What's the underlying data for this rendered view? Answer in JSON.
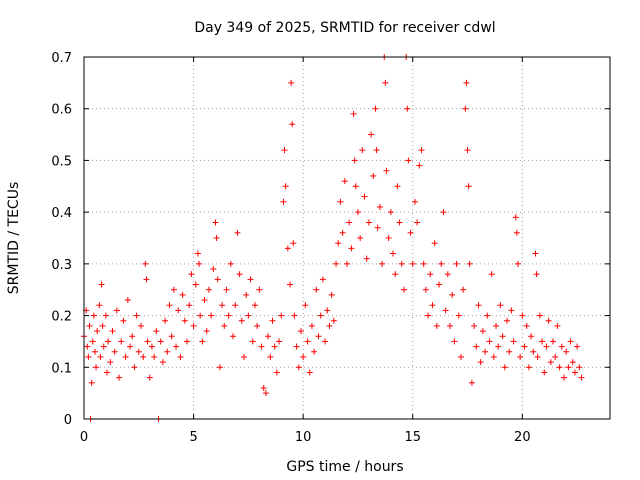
{
  "chart_data": {
    "type": "scatter",
    "title": "Day 349 of 2025, SRMTID for receiver cdwl",
    "xlabel": "GPS time / hours",
    "ylabel": "SRMTID / TECUs",
    "xlim": [
      0,
      24
    ],
    "ylim": [
      0,
      0.7
    ],
    "xticks": [
      0,
      5,
      10,
      15,
      20
    ],
    "yticks": [
      0,
      0.1,
      0.2,
      0.3,
      0.4,
      0.5,
      0.6,
      0.7
    ],
    "grid": true,
    "marker": "+",
    "color": "#ff0000",
    "series": [
      {
        "name": "SRMTID",
        "points": [
          [
            0.0,
            0.16
          ],
          [
            0.1,
            0.21
          ],
          [
            0.15,
            0.14
          ],
          [
            0.2,
            0.12
          ],
          [
            0.25,
            0.18
          ],
          [
            0.3,
            0.0
          ],
          [
            0.35,
            0.07
          ],
          [
            0.4,
            0.15
          ],
          [
            0.45,
            0.2
          ],
          [
            0.5,
            0.13
          ],
          [
            0.55,
            0.1
          ],
          [
            0.6,
            0.17
          ],
          [
            0.7,
            0.22
          ],
          [
            0.75,
            0.12
          ],
          [
            0.8,
            0.26
          ],
          [
            0.85,
            0.18
          ],
          [
            0.9,
            0.14
          ],
          [
            1.0,
            0.2
          ],
          [
            1.05,
            0.09
          ],
          [
            1.1,
            0.15
          ],
          [
            1.2,
            0.11
          ],
          [
            1.3,
            0.17
          ],
          [
            1.4,
            0.13
          ],
          [
            1.5,
            0.21
          ],
          [
            1.6,
            0.08
          ],
          [
            1.7,
            0.15
          ],
          [
            1.8,
            0.19
          ],
          [
            1.9,
            0.12
          ],
          [
            2.0,
            0.23
          ],
          [
            2.1,
            0.14
          ],
          [
            2.2,
            0.16
          ],
          [
            2.3,
            0.1
          ],
          [
            2.4,
            0.2
          ],
          [
            2.5,
            0.13
          ],
          [
            2.6,
            0.18
          ],
          [
            2.7,
            0.12
          ],
          [
            2.8,
            0.3
          ],
          [
            2.85,
            0.27
          ],
          [
            2.9,
            0.15
          ],
          [
            3.0,
            0.08
          ],
          [
            3.1,
            0.14
          ],
          [
            3.2,
            0.12
          ],
          [
            3.3,
            0.17
          ],
          [
            3.4,
            0.0
          ],
          [
            3.5,
            0.15
          ],
          [
            3.6,
            0.11
          ],
          [
            3.7,
            0.19
          ],
          [
            3.8,
            0.13
          ],
          [
            3.9,
            0.22
          ],
          [
            4.0,
            0.16
          ],
          [
            4.1,
            0.25
          ],
          [
            4.2,
            0.14
          ],
          [
            4.3,
            0.21
          ],
          [
            4.4,
            0.12
          ],
          [
            4.5,
            0.24
          ],
          [
            4.6,
            0.19
          ],
          [
            4.7,
            0.15
          ],
          [
            4.8,
            0.22
          ],
          [
            4.9,
            0.28
          ],
          [
            5.0,
            0.18
          ],
          [
            5.1,
            0.26
          ],
          [
            5.2,
            0.32
          ],
          [
            5.25,
            0.3
          ],
          [
            5.3,
            0.2
          ],
          [
            5.4,
            0.15
          ],
          [
            5.5,
            0.23
          ],
          [
            5.6,
            0.17
          ],
          [
            5.7,
            0.25
          ],
          [
            5.8,
            0.2
          ],
          [
            5.9,
            0.29
          ],
          [
            6.0,
            0.38
          ],
          [
            6.05,
            0.35
          ],
          [
            6.1,
            0.27
          ],
          [
            6.2,
            0.1
          ],
          [
            6.3,
            0.22
          ],
          [
            6.4,
            0.18
          ],
          [
            6.5,
            0.25
          ],
          [
            6.6,
            0.2
          ],
          [
            6.7,
            0.3
          ],
          [
            6.8,
            0.16
          ],
          [
            6.9,
            0.22
          ],
          [
            7.0,
            0.36
          ],
          [
            7.1,
            0.28
          ],
          [
            7.2,
            0.19
          ],
          [
            7.3,
            0.12
          ],
          [
            7.4,
            0.24
          ],
          [
            7.5,
            0.2
          ],
          [
            7.6,
            0.27
          ],
          [
            7.7,
            0.15
          ],
          [
            7.8,
            0.22
          ],
          [
            7.9,
            0.18
          ],
          [
            8.0,
            0.25
          ],
          [
            8.1,
            0.14
          ],
          [
            8.2,
            0.06
          ],
          [
            8.3,
            0.05
          ],
          [
            8.4,
            0.16
          ],
          [
            8.5,
            0.12
          ],
          [
            8.6,
            0.19
          ],
          [
            8.7,
            0.14
          ],
          [
            8.8,
            0.09
          ],
          [
            8.9,
            0.15
          ],
          [
            9.0,
            0.2
          ],
          [
            9.1,
            0.42
          ],
          [
            9.15,
            0.52
          ],
          [
            9.2,
            0.45
          ],
          [
            9.3,
            0.33
          ],
          [
            9.4,
            0.26
          ],
          [
            9.45,
            0.65
          ],
          [
            9.5,
            0.57
          ],
          [
            9.55,
            0.34
          ],
          [
            9.6,
            0.2
          ],
          [
            9.7,
            0.14
          ],
          [
            9.8,
            0.1
          ],
          [
            9.9,
            0.17
          ],
          [
            10.0,
            0.12
          ],
          [
            10.1,
            0.22
          ],
          [
            10.2,
            0.15
          ],
          [
            10.3,
            0.09
          ],
          [
            10.4,
            0.18
          ],
          [
            10.5,
            0.13
          ],
          [
            10.6,
            0.25
          ],
          [
            10.7,
            0.16
          ],
          [
            10.8,
            0.2
          ],
          [
            10.9,
            0.27
          ],
          [
            11.0,
            0.15
          ],
          [
            11.1,
            0.21
          ],
          [
            11.2,
            0.18
          ],
          [
            11.3,
            0.24
          ],
          [
            11.4,
            0.19
          ],
          [
            11.5,
            0.3
          ],
          [
            11.6,
            0.34
          ],
          [
            11.7,
            0.42
          ],
          [
            11.8,
            0.36
          ],
          [
            11.9,
            0.46
          ],
          [
            12.0,
            0.3
          ],
          [
            12.1,
            0.38
          ],
          [
            12.2,
            0.33
          ],
          [
            12.3,
            0.59
          ],
          [
            12.35,
            0.5
          ],
          [
            12.4,
            0.45
          ],
          [
            12.5,
            0.4
          ],
          [
            12.6,
            0.35
          ],
          [
            12.7,
            0.52
          ],
          [
            12.8,
            0.43
          ],
          [
            12.9,
            0.31
          ],
          [
            13.0,
            0.38
          ],
          [
            13.1,
            0.55
          ],
          [
            13.2,
            0.47
          ],
          [
            13.3,
            0.6
          ],
          [
            13.35,
            0.52
          ],
          [
            13.4,
            0.37
          ],
          [
            13.5,
            0.41
          ],
          [
            13.6,
            0.3
          ],
          [
            13.7,
            0.7
          ],
          [
            13.75,
            0.65
          ],
          [
            13.8,
            0.48
          ],
          [
            13.9,
            0.35
          ],
          [
            14.0,
            0.4
          ],
          [
            14.1,
            0.32
          ],
          [
            14.2,
            0.28
          ],
          [
            14.3,
            0.45
          ],
          [
            14.4,
            0.38
          ],
          [
            14.5,
            0.3
          ],
          [
            14.6,
            0.25
          ],
          [
            14.7,
            0.7
          ],
          [
            14.75,
            0.6
          ],
          [
            14.8,
            0.5
          ],
          [
            14.9,
            0.36
          ],
          [
            15.0,
            0.3
          ],
          [
            15.1,
            0.42
          ],
          [
            15.2,
            0.38
          ],
          [
            15.3,
            0.49
          ],
          [
            15.4,
            0.52
          ],
          [
            15.5,
            0.3
          ],
          [
            15.6,
            0.25
          ],
          [
            15.7,
            0.2
          ],
          [
            15.8,
            0.28
          ],
          [
            15.9,
            0.22
          ],
          [
            16.0,
            0.34
          ],
          [
            16.1,
            0.18
          ],
          [
            16.2,
            0.26
          ],
          [
            16.3,
            0.3
          ],
          [
            16.4,
            0.4
          ],
          [
            16.5,
            0.21
          ],
          [
            16.6,
            0.28
          ],
          [
            16.7,
            0.18
          ],
          [
            16.8,
            0.24
          ],
          [
            16.9,
            0.15
          ],
          [
            17.0,
            0.3
          ],
          [
            17.1,
            0.2
          ],
          [
            17.2,
            0.12
          ],
          [
            17.3,
            0.25
          ],
          [
            17.4,
            0.6
          ],
          [
            17.45,
            0.65
          ],
          [
            17.5,
            0.52
          ],
          [
            17.55,
            0.45
          ],
          [
            17.6,
            0.3
          ],
          [
            17.7,
            0.07
          ],
          [
            17.8,
            0.18
          ],
          [
            17.9,
            0.14
          ],
          [
            18.0,
            0.22
          ],
          [
            18.1,
            0.11
          ],
          [
            18.2,
            0.17
          ],
          [
            18.3,
            0.13
          ],
          [
            18.4,
            0.2
          ],
          [
            18.5,
            0.15
          ],
          [
            18.6,
            0.28
          ],
          [
            18.7,
            0.12
          ],
          [
            18.8,
            0.18
          ],
          [
            18.9,
            0.14
          ],
          [
            19.0,
            0.22
          ],
          [
            19.1,
            0.16
          ],
          [
            19.2,
            0.1
          ],
          [
            19.3,
            0.19
          ],
          [
            19.4,
            0.13
          ],
          [
            19.5,
            0.21
          ],
          [
            19.6,
            0.15
          ],
          [
            19.7,
            0.39
          ],
          [
            19.75,
            0.36
          ],
          [
            19.8,
            0.3
          ],
          [
            19.9,
            0.12
          ],
          [
            20.0,
            0.2
          ],
          [
            20.1,
            0.14
          ],
          [
            20.2,
            0.18
          ],
          [
            20.3,
            0.1
          ],
          [
            20.4,
            0.16
          ],
          [
            20.5,
            0.13
          ],
          [
            20.6,
            0.32
          ],
          [
            20.65,
            0.28
          ],
          [
            20.7,
            0.12
          ],
          [
            20.8,
            0.2
          ],
          [
            20.9,
            0.15
          ],
          [
            21.0,
            0.09
          ],
          [
            21.1,
            0.14
          ],
          [
            21.2,
            0.19
          ],
          [
            21.3,
            0.11
          ],
          [
            21.4,
            0.15
          ],
          [
            21.5,
            0.12
          ],
          [
            21.6,
            0.18
          ],
          [
            21.7,
            0.1
          ],
          [
            21.8,
            0.14
          ],
          [
            21.9,
            0.08
          ],
          [
            22.0,
            0.13
          ],
          [
            22.1,
            0.1
          ],
          [
            22.2,
            0.15
          ],
          [
            22.3,
            0.11
          ],
          [
            22.4,
            0.09
          ],
          [
            22.5,
            0.14
          ],
          [
            22.6,
            0.1
          ],
          [
            22.7,
            0.08
          ]
        ]
      }
    ]
  }
}
